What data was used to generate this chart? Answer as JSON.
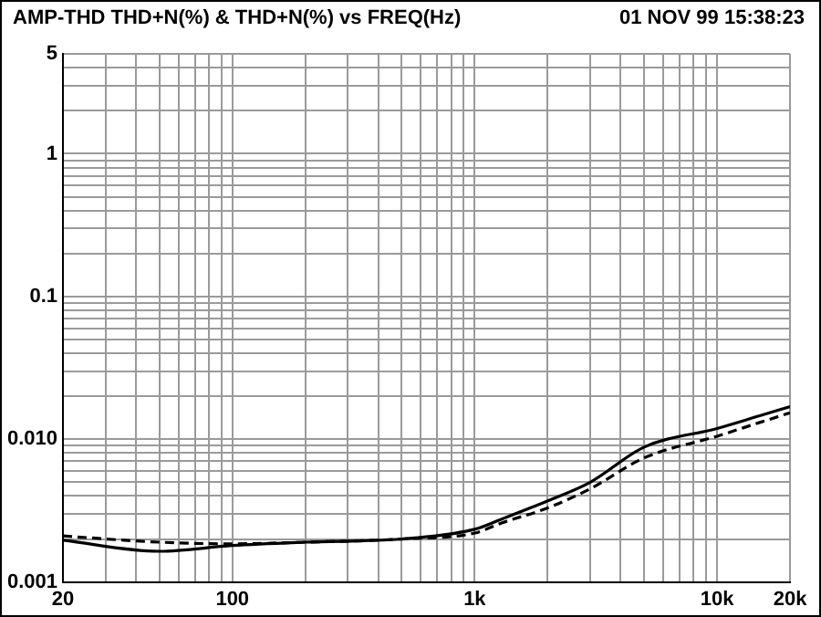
{
  "chart_data": {
    "type": "line",
    "title": "AMP-THD  THD+N(%) & THD+N(%) vs FREQ(Hz)",
    "annotations": [
      "01 NOV 99 15:38:23"
    ],
    "log": "xy",
    "grid": true,
    "marker": "none",
    "x": [
      20,
      50,
      100,
      200,
      500,
      1000,
      1300,
      2000,
      3000,
      5000,
      10000,
      15000,
      20000
    ],
    "series": [
      {
        "color": "#000000",
        "line_style": "solid",
        "values": [
          0.00196,
          0.00164,
          0.0018,
          0.0019,
          0.002,
          0.00234,
          0.00277,
          0.0037,
          0.005,
          0.0088,
          0.0119,
          0.0146,
          0.0169
        ]
      },
      {
        "color": "#000000",
        "line_style": "dashed",
        "values": [
          0.0021,
          0.0019,
          0.00185,
          0.0019,
          0.002,
          0.0022,
          0.0026,
          0.0033,
          0.0045,
          0.0074,
          0.0105,
          0.0131,
          0.0153
        ]
      }
    ],
    "xlim": [
      20,
      20000
    ],
    "xticks": [
      20,
      {
        "value": 30,
        "label": null
      },
      {
        "value": 40,
        "label": null
      },
      {
        "value": 50,
        "label": null
      },
      {
        "value": 60,
        "label": null
      },
      {
        "value": 70,
        "label": null
      },
      {
        "value": 80,
        "label": null
      },
      {
        "value": 90,
        "label": null
      },
      100,
      {
        "value": 200,
        "label": null
      },
      {
        "value": 300,
        "label": null
      },
      {
        "value": 400,
        "label": null
      },
      {
        "value": 500,
        "label": null
      },
      {
        "value": 600,
        "label": null
      },
      {
        "value": 700,
        "label": null
      },
      {
        "value": 800,
        "label": null
      },
      {
        "value": 900,
        "label": null
      },
      {
        "value": 1000,
        "label": "1k"
      },
      {
        "value": 2000,
        "label": null
      },
      {
        "value": 3000,
        "label": null
      },
      {
        "value": 4000,
        "label": null
      },
      {
        "value": 5000,
        "label": null
      },
      {
        "value": 6000,
        "label": null
      },
      {
        "value": 7000,
        "label": null
      },
      {
        "value": 8000,
        "label": null
      },
      {
        "value": 9000,
        "label": null
      },
      {
        "value": 10000,
        "label": "10k"
      },
      {
        "value": 20000,
        "label": "20k"
      }
    ],
    "ylim": [
      0.001,
      5
    ],
    "yticks": [
      0.001,
      {
        "value": 0.002,
        "label": null
      },
      {
        "value": 0.003,
        "label": null
      },
      {
        "value": 0.004,
        "label": null
      },
      {
        "value": 0.005,
        "label": null
      },
      {
        "value": 0.006,
        "label": null
      },
      {
        "value": 0.007,
        "label": null
      },
      {
        "value": 0.008,
        "label": null
      },
      {
        "value": 0.009,
        "label": null
      },
      {
        "value": 0.01,
        "label": "0.010"
      },
      {
        "value": 0.02,
        "label": null
      },
      {
        "value": 0.03,
        "label": null
      },
      {
        "value": 0.04,
        "label": null
      },
      {
        "value": 0.05,
        "label": null
      },
      {
        "value": 0.06,
        "label": null
      },
      {
        "value": 0.07,
        "label": null
      },
      {
        "value": 0.08,
        "label": null
      },
      {
        "value": 0.09,
        "label": null
      },
      0.1,
      {
        "value": 0.2,
        "label": null
      },
      {
        "value": 0.3,
        "label": null
      },
      {
        "value": 0.4,
        "label": null
      },
      {
        "value": 0.5,
        "label": null
      },
      {
        "value": 0.6,
        "label": null
      },
      {
        "value": 0.7,
        "label": null
      },
      {
        "value": 0.8,
        "label": null
      },
      {
        "value": 0.9,
        "label": null
      },
      1,
      {
        "value": 2,
        "label": null
      },
      {
        "value": 3,
        "label": null
      },
      {
        "value": 4,
        "label": null
      },
      5
    ]
  }
}
